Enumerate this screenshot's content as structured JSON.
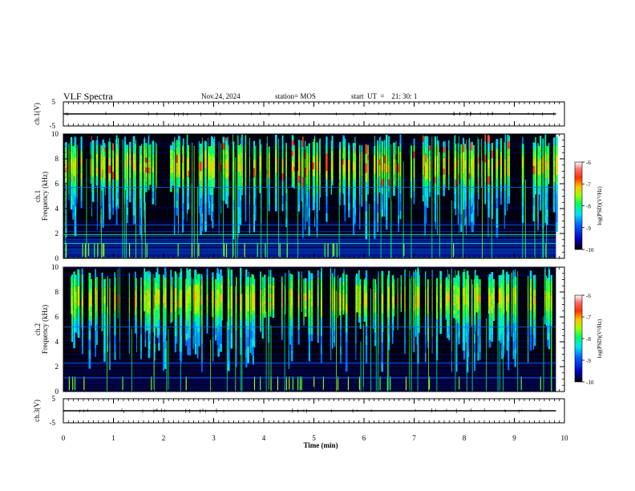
{
  "header": {
    "title": "VLF Spectra",
    "date": "Nov.24, 2024",
    "station": "station= MOS",
    "start_ut": "start  UT  =    21: 30: 1"
  },
  "chart_data": {
    "type": "heatmap",
    "x_label": "Time  (min)",
    "x_range": [
      0,
      10
    ],
    "x_ticks": [
      "0",
      "1",
      "2",
      "3",
      "4",
      "5",
      "6",
      "7",
      "8",
      "9",
      "10"
    ],
    "panels": [
      {
        "id": "ch1-waveform",
        "type": "line",
        "ylabel": "ch.1(V)",
        "ylim": [
          -5,
          5
        ],
        "yticks": [
          "5",
          "-5"
        ],
        "series": [
          {
            "values_approx": 0
          }
        ]
      },
      {
        "id": "ch1-spectrogram",
        "type": "heatmap",
        "ylabel": "ch.1\nFrequency (kHz)",
        "ylabel_line1": "ch.1",
        "ylabel_line2": "Frequency  (kHz)",
        "ylim": [
          0,
          10
        ],
        "yticks": [
          "0",
          "2",
          "4",
          "6",
          "8",
          "10"
        ],
        "data_x_range": [
          0,
          9.83
        ],
        "colorbar": {
          "label": "log(PSD)(V²/Hz)",
          "range": [
            -10,
            -6
          ],
          "ticks": [
            "-6",
            "-7",
            "-8",
            "-9",
            "-10"
          ]
        }
      },
      {
        "id": "ch2-spectrogram",
        "type": "heatmap",
        "ylabel_line1": "ch.2",
        "ylabel_line2": "Frequency  (kHz)",
        "ylim": [
          0,
          10
        ],
        "yticks": [
          "0",
          "2",
          "4",
          "6",
          "8",
          "10"
        ],
        "data_x_range": [
          0,
          9.83
        ],
        "colorbar": {
          "label": "log(PSD)(V²/Hz)",
          "range": [
            -10,
            -6
          ],
          "ticks": [
            "-6",
            "-7",
            "-8",
            "-9",
            "-10"
          ]
        }
      },
      {
        "id": "ch3-waveform",
        "type": "line",
        "ylabel": "ch.3(V)",
        "ylim": [
          -5,
          5
        ],
        "yticks": [
          "5",
          "-5"
        ],
        "series": [
          {
            "values_approx": 0
          }
        ]
      }
    ]
  }
}
